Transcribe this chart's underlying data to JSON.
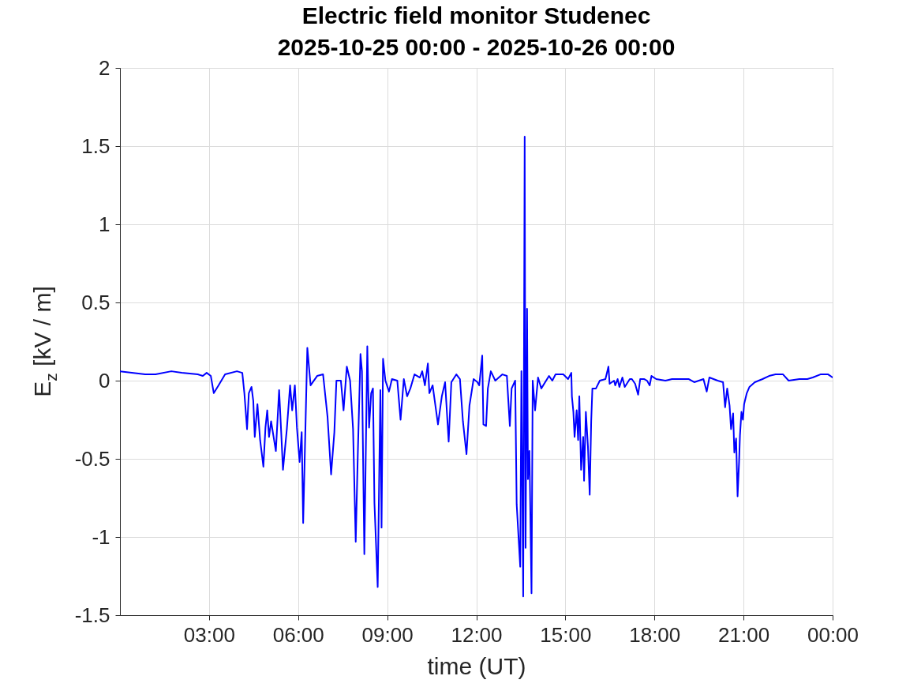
{
  "chart_data": {
    "type": "line",
    "title": "Electric field monitor Studenec",
    "subtitle": "2025-10-25 00:00 - 2025-10-26 00:00",
    "xlabel": "time (UT)",
    "ylabel": "E$_{z}$ [kV / m]",
    "x": [
      0,
      0.85,
      1.2,
      1.73,
      2.08,
      2.62,
      2.79,
      2.92,
      3.06,
      3.16,
      3.32,
      3.54,
      3.94,
      4.12,
      4.19,
      4.28,
      4.34,
      4.43,
      4.49,
      4.54,
      4.63,
      4.72,
      4.83,
      4.9,
      4.96,
      5.02,
      5.09,
      5.25,
      5.36,
      5.43,
      5.49,
      5.62,
      5.73,
      5.8,
      5.89,
      5.96,
      6.05,
      6.12,
      6.17,
      6.31,
      6.42,
      6.64,
      6.84,
      6.99,
      7.11,
      7.22,
      7.29,
      7.44,
      7.53,
      7.64,
      7.75,
      7.85,
      7.94,
      8.01,
      8.1,
      8.15,
      8.23,
      8.33,
      8.39,
      8.46,
      8.52,
      8.57,
      8.68,
      8.77,
      8.81,
      8.86,
      8.94,
      9.06,
      9.16,
      9.34,
      9.45,
      9.56,
      9.67,
      9.78,
      9.92,
      10.1,
      10.18,
      10.27,
      10.37,
      10.42,
      10.53,
      10.71,
      10.84,
      10.95,
      11.07,
      11.16,
      11.33,
      11.45,
      11.55,
      11.67,
      11.77,
      11.91,
      12.04,
      12.1,
      12.2,
      12.24,
      12.33,
      12.39,
      12.49,
      12.64,
      12.88,
      13.03,
      13.13,
      13.19,
      13.31,
      13.36,
      13.48,
      13.52,
      13.58,
      13.63,
      13.66,
      13.71,
      13.74,
      13.79,
      13.86,
      13.9,
      13.98,
      14.08,
      14.19,
      14.45,
      14.56,
      14.67,
      14.93,
      15.09,
      15.2,
      15.22,
      15.27,
      15.31,
      15.38,
      15.43,
      15.47,
      15.53,
      15.6,
      15.63,
      15.69,
      15.76,
      15.82,
      15.87,
      15.91,
      16.03,
      16.16,
      16.35,
      16.45,
      16.49,
      16.64,
      16.68,
      16.76,
      16.82,
      16.92,
      17.0,
      17.17,
      17.24,
      17.35,
      17.45,
      17.52,
      17.66,
      17.75,
      17.84,
      17.9,
      18.06,
      18.37,
      18.59,
      18.81,
      19.16,
      19.34,
      19.65,
      19.76,
      19.85,
      20.13,
      20.31,
      20.38,
      20.45,
      20.53,
      20.58,
      20.65,
      20.69,
      20.75,
      20.8,
      20.85,
      20.88,
      20.93,
      20.98,
      21.02,
      21.11,
      21.2,
      21.38,
      21.64,
      21.86,
      22.08,
      22.33,
      22.52,
      22.88,
      23.15,
      23.33,
      23.59,
      23.85,
      24
    ],
    "series": [
      {
        "color": "#0000ff",
        "values": [
          0.06,
          0.04,
          0.04,
          0.06,
          0.05,
          0.04,
          0.03,
          0.05,
          0.03,
          -0.08,
          -0.03,
          0.04,
          0.06,
          0.05,
          -0.08,
          -0.31,
          -0.08,
          -0.04,
          -0.13,
          -0.36,
          -0.15,
          -0.38,
          -0.55,
          -0.3,
          -0.19,
          -0.36,
          -0.26,
          -0.45,
          -0.06,
          -0.33,
          -0.57,
          -0.31,
          -0.03,
          -0.19,
          -0.03,
          -0.3,
          -0.52,
          -0.33,
          -0.91,
          0.21,
          -0.03,
          0.03,
          0.04,
          -0.23,
          -0.6,
          -0.33,
          0,
          0,
          -0.19,
          0.09,
          0,
          -0.31,
          -1.03,
          -0.47,
          0.17,
          0.06,
          -1.11,
          0.22,
          -0.3,
          -0.08,
          -0.05,
          -0.78,
          -1.32,
          -0.06,
          -0.94,
          0.14,
          0,
          -0.07,
          0.01,
          0,
          -0.25,
          0.01,
          -0.1,
          -0.05,
          0.04,
          0.02,
          0.06,
          -0.03,
          0.11,
          -0.08,
          -0.03,
          -0.28,
          -0.1,
          -0.01,
          -0.39,
          -0.01,
          0.04,
          0.01,
          -0.26,
          -0.47,
          -0.16,
          0.01,
          -0.01,
          -0.03,
          0.16,
          -0.28,
          -0.29,
          -0.05,
          0.06,
          0,
          0.04,
          0.03,
          -0.29,
          -0.05,
          0,
          -0.79,
          -1.19,
          0.06,
          -1.38,
          1.56,
          -1.07,
          0.46,
          -0.63,
          -0.45,
          -1.36,
          0,
          -0.19,
          0.02,
          -0.05,
          0.03,
          0,
          0.04,
          0.04,
          0.01,
          0.05,
          -0.1,
          -0.2,
          -0.36,
          -0.19,
          -0.38,
          -0.1,
          -0.57,
          -0.36,
          -0.64,
          -0.2,
          -0.42,
          -0.73,
          -0.26,
          -0.05,
          -0.05,
          0,
          0.01,
          0.09,
          -0.02,
          0,
          -0.03,
          0.01,
          -0.04,
          0.02,
          -0.04,
          0.01,
          0.01,
          -0.02,
          -0.09,
          0.01,
          0.01,
          0,
          -0.03,
          0.03,
          0.01,
          0,
          0.01,
          0.01,
          0.01,
          -0.01,
          0.01,
          -0.07,
          0.02,
          0,
          -0.01,
          -0.17,
          -0.05,
          -0.16,
          -0.31,
          -0.21,
          -0.46,
          -0.37,
          -0.74,
          -0.52,
          -0.35,
          -0.2,
          -0.25,
          -0.15,
          -0.08,
          -0.04,
          -0.01,
          0.01,
          0.03,
          0.04,
          0.04,
          0,
          0.01,
          0.01,
          0.02,
          0.04,
          0.04,
          0.02
        ]
      }
    ],
    "xlim": [
      0,
      24
    ],
    "xticks": [
      {
        "value": 3,
        "label": "03:00"
      },
      {
        "value": 6,
        "label": "06:00"
      },
      {
        "value": 9,
        "label": "09:00"
      },
      {
        "value": 12,
        "label": "12:00"
      },
      {
        "value": 15,
        "label": "15:00"
      },
      {
        "value": 18,
        "label": "18:00"
      },
      {
        "value": 21,
        "label": "21:00"
      },
      {
        "value": 24,
        "label": "00:00"
      }
    ],
    "ylim": [
      -1.5,
      2
    ],
    "yticks": [
      -1.5,
      -1,
      -0.5,
      0,
      0.5,
      1,
      1.5,
      2
    ],
    "grid": true,
    "line_style": "solid"
  }
}
